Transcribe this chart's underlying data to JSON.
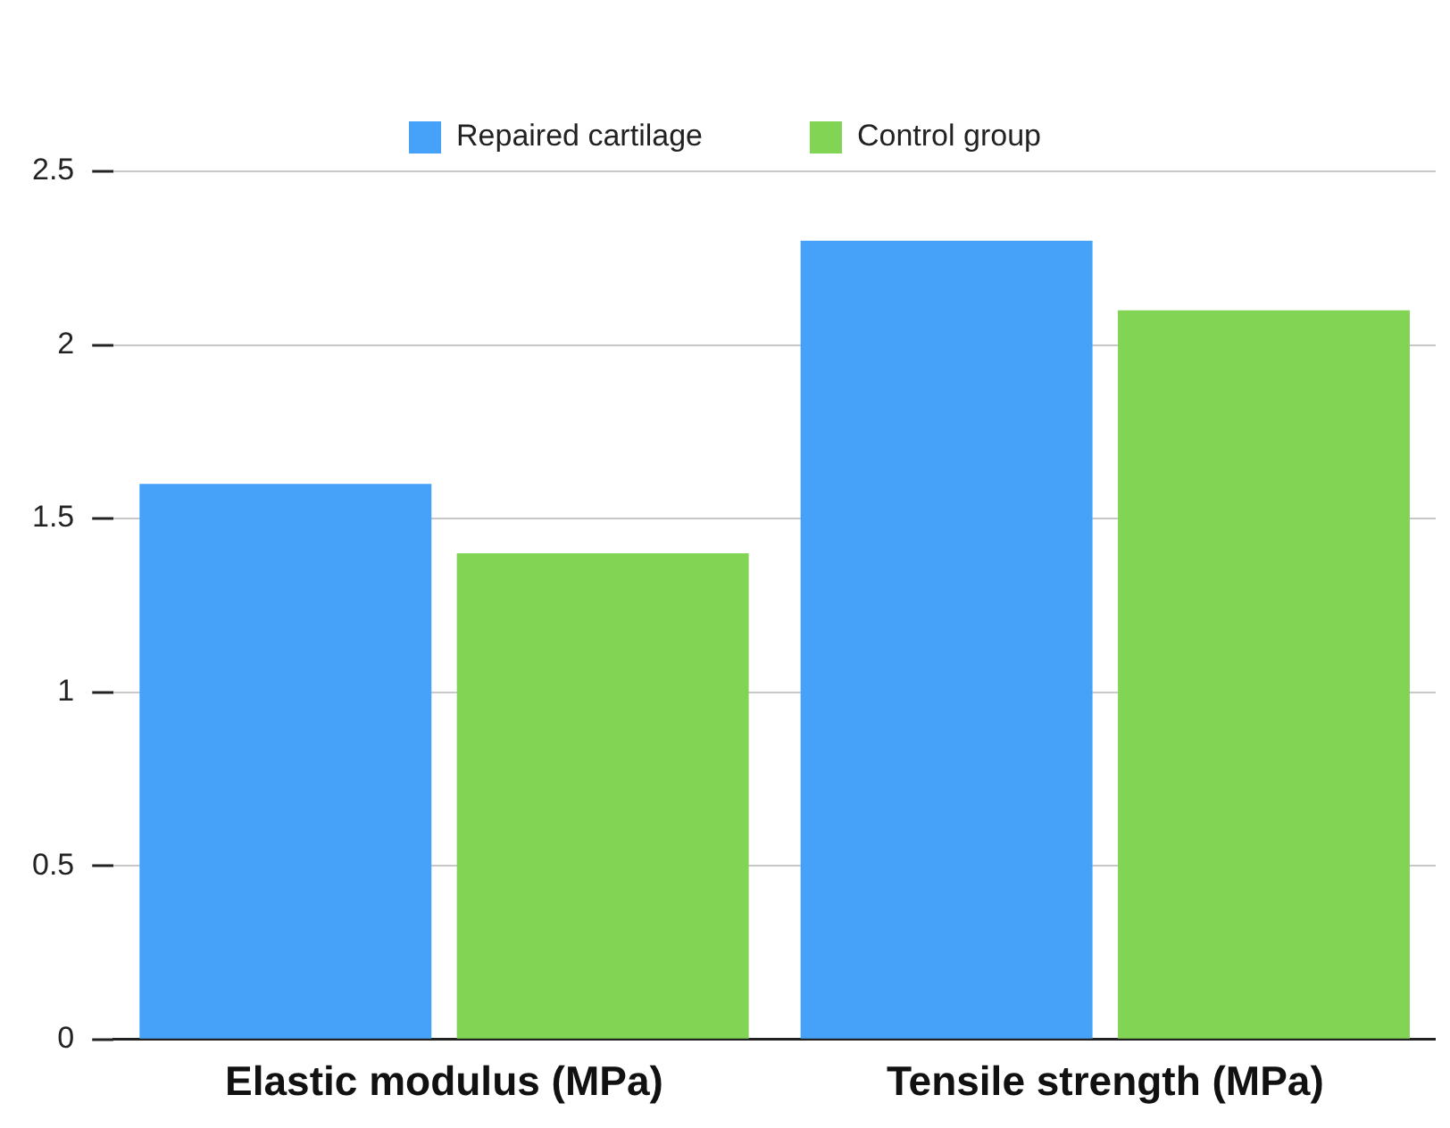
{
  "chart_data": {
    "type": "bar",
    "categories": [
      "Elastic modulus (MPa)",
      "Tensile strength (MPa)"
    ],
    "series": [
      {
        "name": "Repaired cartilage",
        "color": "#46a2f8",
        "values": [
          1.6,
          2.3
        ]
      },
      {
        "name": "Control group",
        "color": "#82d454",
        "values": [
          1.4,
          2.1
        ]
      }
    ],
    "ylim": [
      0,
      2.5
    ],
    "yticks": [
      0,
      0.5,
      1,
      1.5,
      2,
      2.5
    ],
    "grid": "y",
    "legend": "top"
  }
}
